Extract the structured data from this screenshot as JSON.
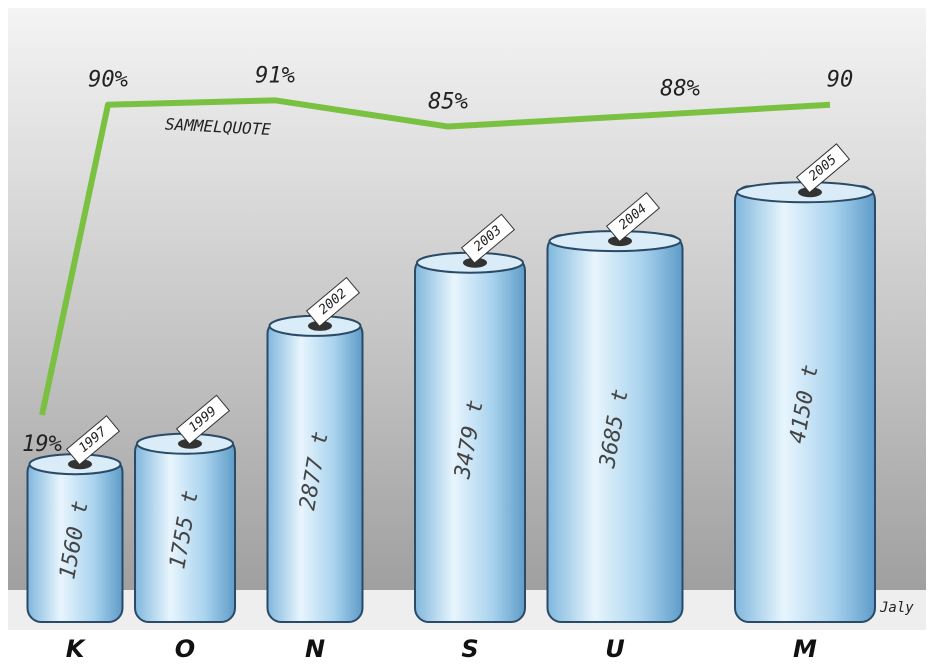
{
  "chart_data": {
    "type": "bar",
    "categories": [
      "K",
      "O",
      "N",
      "S",
      "U",
      "M"
    ],
    "years": [
      "1997",
      "1999",
      "2002",
      "2003",
      "2004",
      "2005"
    ],
    "values": [
      1560,
      1755,
      2877,
      3479,
      3685,
      4150
    ],
    "value_labels": [
      "1560 t",
      "1755 t",
      "2877 t",
      "3479 t",
      "3685 t",
      "4150 t"
    ],
    "color": "#a9d3ee",
    "line": {
      "type": "line",
      "label": "SAMMELQUOTE",
      "color": "#7ac142",
      "values": [
        19,
        90,
        91,
        85,
        88,
        90
      ],
      "value_labels": [
        "19%",
        "90%",
        "91%",
        "85%",
        "88%",
        "90"
      ]
    },
    "signature": "Jaly"
  }
}
